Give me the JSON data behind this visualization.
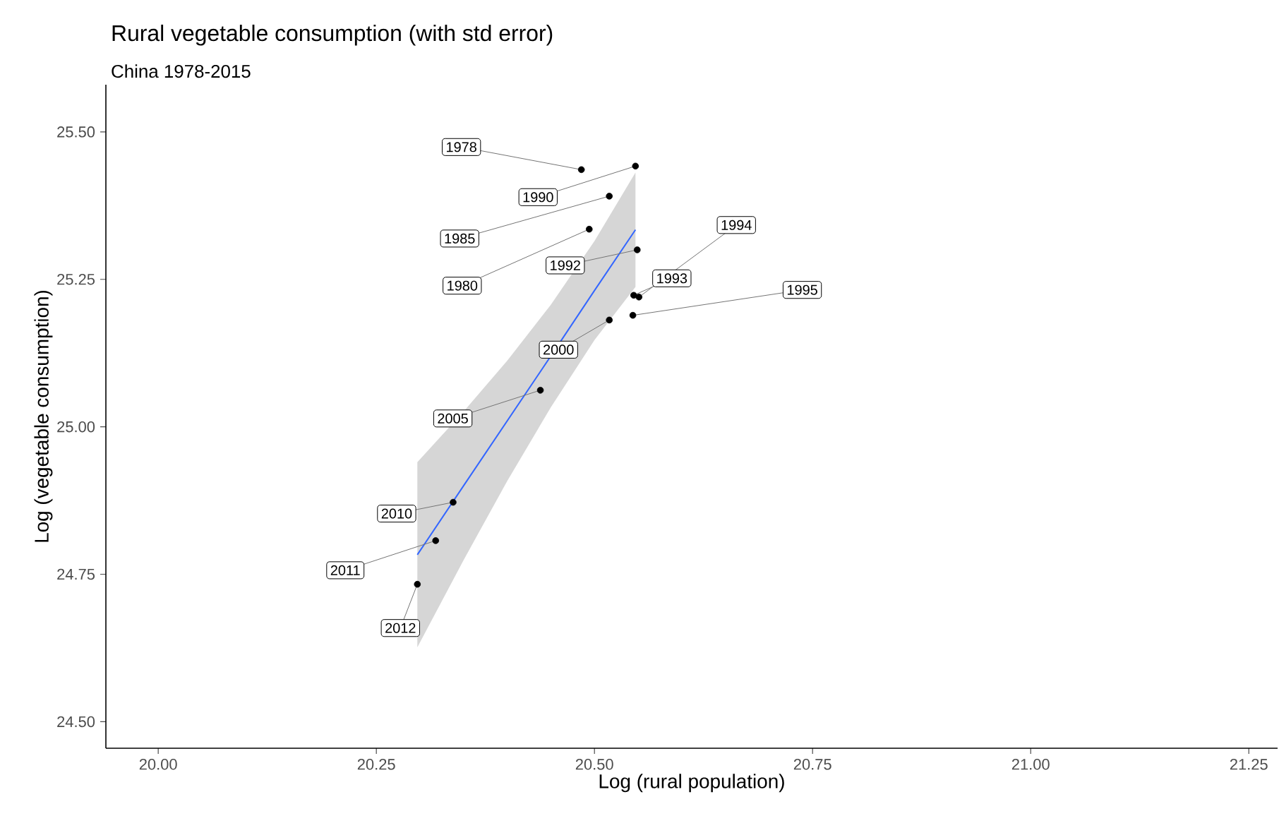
{
  "chart_data": {
    "type": "scatter",
    "title": "Rural vegetable consumption (with std error)",
    "subtitle": "China 1978-2015",
    "xlabel": "Log (rural population)",
    "ylabel": "Log (vegetable consumption)",
    "xlim": [
      19.94,
      21.283
    ],
    "ylim": [
      24.455,
      25.58
    ],
    "xticks": [
      {
        "value": 20.0,
        "label": "20.00"
      },
      {
        "value": 20.25,
        "label": "20.25"
      },
      {
        "value": 20.5,
        "label": "20.50"
      },
      {
        "value": 20.75,
        "label": "20.75"
      },
      {
        "value": 21.0,
        "label": "21.00"
      },
      {
        "value": 21.25,
        "label": "21.25"
      }
    ],
    "yticks": [
      {
        "value": 24.5,
        "label": "24.50"
      },
      {
        "value": 24.75,
        "label": "24.75"
      },
      {
        "value": 25.0,
        "label": "25.00"
      },
      {
        "value": 25.25,
        "label": "25.25"
      },
      {
        "value": 25.5,
        "label": "25.50"
      }
    ],
    "grid": false,
    "series": [
      {
        "marker": "circle",
        "color": "#000000",
        "x": [
          20.485,
          20.494,
          20.517,
          20.547,
          20.549,
          20.545,
          20.551,
          20.544,
          20.517,
          20.438,
          20.338,
          20.318,
          20.297
        ],
        "values": [
          25.436,
          25.335,
          25.391,
          25.442,
          25.3,
          25.223,
          25.22,
          25.189,
          25.181,
          25.062,
          24.872,
          24.807,
          24.733
        ]
      },
      {
        "type": "line",
        "marker": "none",
        "color": "#3366ff",
        "x": [
          20.297,
          20.35,
          20.4,
          20.45,
          20.5,
          20.547
        ],
        "values": [
          24.783,
          24.9,
          25.01,
          25.12,
          25.231,
          25.334
        ],
        "lower": [
          24.626,
          24.774,
          24.908,
          25.033,
          25.147,
          25.237
        ],
        "upper": [
          24.94,
          25.026,
          25.112,
          25.207,
          25.315,
          25.431
        ]
      }
    ],
    "annotations": [
      {
        "text": "1978",
        "x": 20.485,
        "y": 25.436
      },
      {
        "text": "1980",
        "x": 20.494,
        "y": 25.335
      },
      {
        "text": "1985",
        "x": 20.517,
        "y": 25.391
      },
      {
        "text": "1990",
        "x": 20.547,
        "y": 25.442
      },
      {
        "text": "1992",
        "x": 20.549,
        "y": 25.3
      },
      {
        "text": "1993",
        "x": 20.545,
        "y": 25.223
      },
      {
        "text": "1994",
        "x": 20.551,
        "y": 25.22
      },
      {
        "text": "1995",
        "x": 20.544,
        "y": 25.189
      },
      {
        "text": "2000",
        "x": 20.517,
        "y": 25.181
      },
      {
        "text": "2005",
        "x": 20.438,
        "y": 25.062
      },
      {
        "text": "2010",
        "x": 20.338,
        "y": 24.872
      },
      {
        "text": "2011",
        "x": 20.318,
        "y": 24.807
      },
      {
        "text": "2012",
        "x": 20.297,
        "y": 24.733
      }
    ]
  }
}
